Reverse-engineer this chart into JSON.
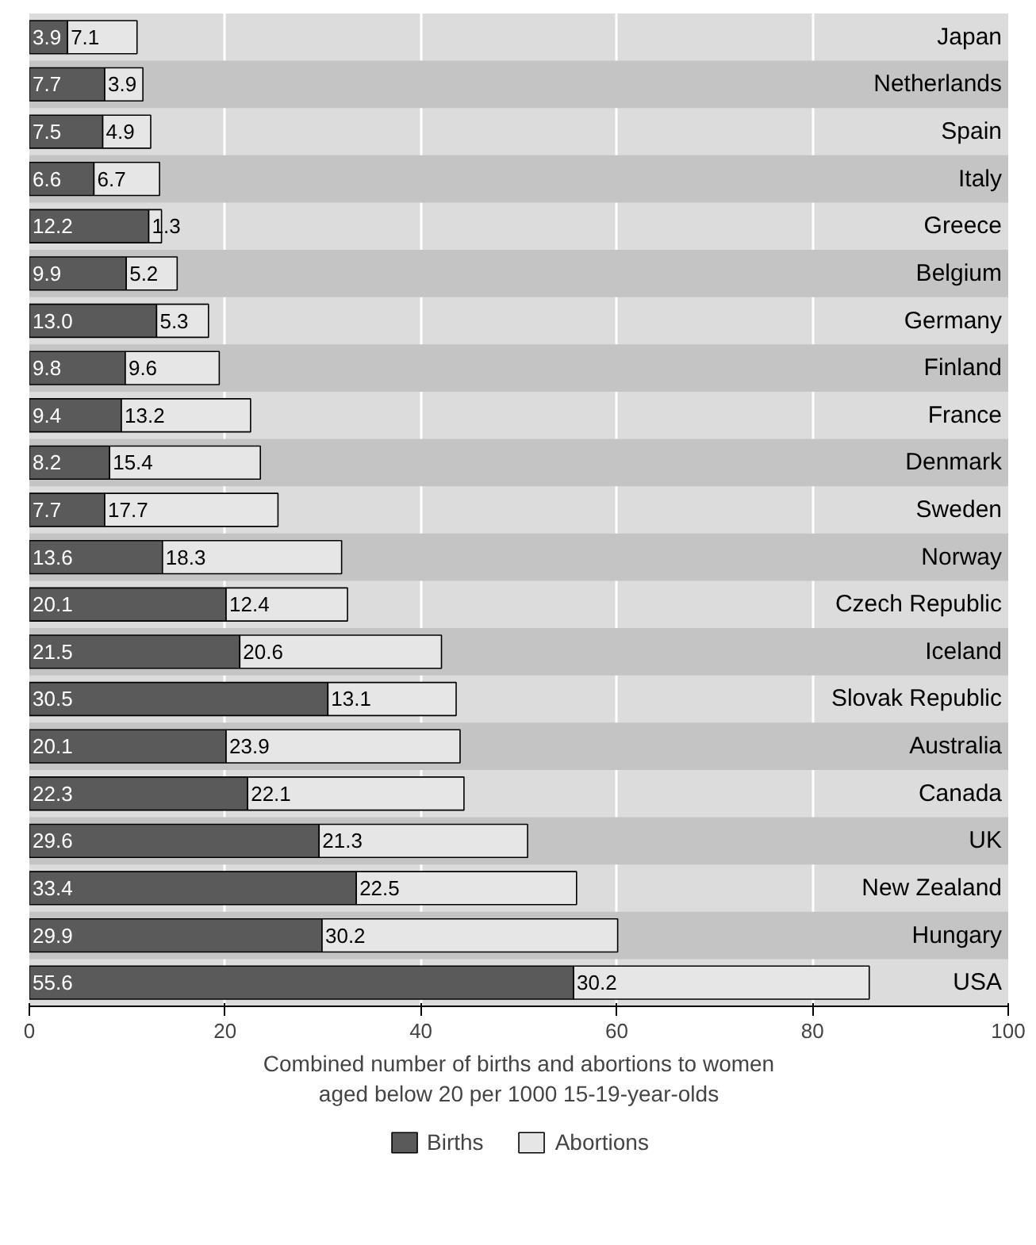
{
  "chart_data": {
    "type": "bar",
    "orientation": "horizontal",
    "stacked": true,
    "data_labels": true,
    "grid": "x",
    "legend": "bottom",
    "xlabel": "Combined number of births and abortions to women\naged below 20 per 1000 15-19-year-olds",
    "categories": [
      "Japan",
      "Netherlands",
      "Spain",
      "Italy",
      "Greece",
      "Belgium",
      "Germany",
      "Finland",
      "France",
      "Denmark",
      "Sweden",
      "Norway",
      "Czech Republic",
      "Iceland",
      "Slovak Republic",
      "Australia",
      "Canada",
      "UK",
      "New Zealand",
      "Hungary",
      "USA"
    ],
    "series": [
      {
        "name": "Births",
        "color": "#5a5a5a",
        "values": [
          3.9,
          7.7,
          7.5,
          6.6,
          12.2,
          9.9,
          13.0,
          9.8,
          9.4,
          8.2,
          7.7,
          13.6,
          20.1,
          21.5,
          30.5,
          20.1,
          22.3,
          29.6,
          33.4,
          29.9,
          55.6
        ],
        "value_labels": [
          "3.9",
          "7.7",
          "7.5",
          "6.6",
          "12.2",
          "9.9",
          "13.0",
          "9.8",
          "9.4",
          "8.2",
          "7.7",
          "13.6",
          "20.1",
          "21.5",
          "30.5",
          "20.1",
          "22.3",
          "29.6",
          "33.4",
          "29.9",
          "55.6"
        ]
      },
      {
        "name": "Abortions",
        "color": "#e6e6e6",
        "values": [
          7.1,
          3.9,
          4.9,
          6.7,
          1.3,
          5.2,
          5.3,
          9.6,
          13.2,
          15.4,
          17.7,
          18.3,
          12.4,
          20.6,
          13.1,
          23.9,
          22.1,
          21.3,
          22.5,
          30.2,
          30.2
        ],
        "value_labels": [
          "7.1",
          "3.9",
          "4.9",
          "6.7",
          "1.3",
          "5.2",
          "5.3",
          "9.6",
          "13.2",
          "15.4",
          "17.7",
          "18.3",
          "12.4",
          "20.6",
          "13.1",
          "23.9",
          "22.1",
          "21.3",
          "22.5",
          "30.2",
          "30.2"
        ]
      }
    ],
    "xlim": [
      0,
      100
    ],
    "xticks": [
      0,
      20,
      40,
      60,
      80,
      100
    ]
  }
}
